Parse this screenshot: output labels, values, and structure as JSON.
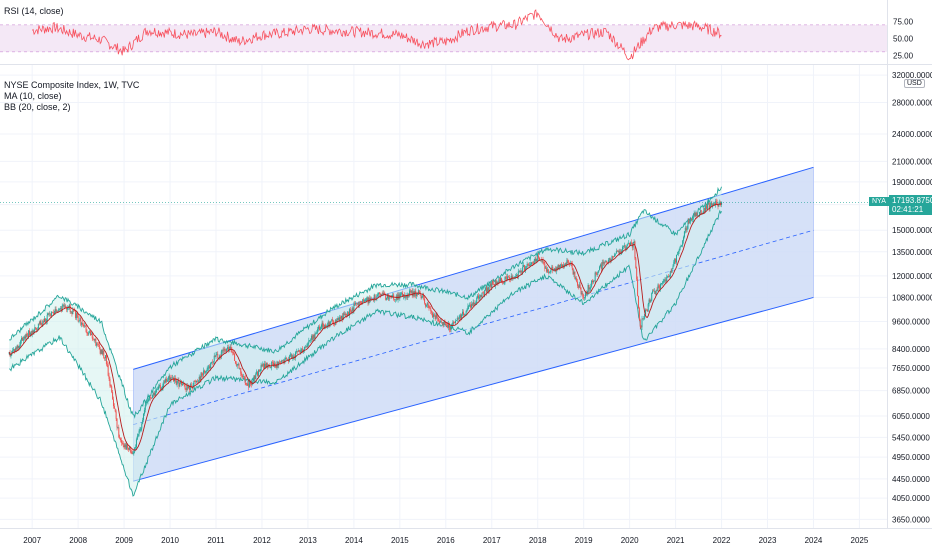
{
  "rsi_pane": {
    "title": "RSI (14, close)",
    "ticks": [
      "75.00",
      "50.00",
      "25.00"
    ]
  },
  "main_pane": {
    "title": "NYSE Composite Index, 1W, TVC",
    "indicator_ma": "MA (10, close)",
    "indicator_bb": "BB (20, close, 2)",
    "currency": "USD",
    "symbol_tag": "NYA",
    "last_price": "17193.8750",
    "countdown": "02:41:21",
    "y_ticks": [
      "32000.0000",
      "28000.0000",
      "24000.0000",
      "21000.0000",
      "19000.0000",
      "17000.0000",
      "15000.0000",
      "13500.0000",
      "12000.0000",
      "10800.0000",
      "9600.0000",
      "8400.0000",
      "7650.0000",
      "6850.0000",
      "6050.0000",
      "5450.0000",
      "4950.0000",
      "4450.0000",
      "4050.0000",
      "3650.0000"
    ],
    "x_ticks": [
      "2007",
      "2008",
      "2009",
      "2010",
      "2011",
      "2012",
      "2013",
      "2014",
      "2015",
      "2016",
      "2017",
      "2018",
      "2019",
      "2020",
      "2021",
      "2022",
      "2023",
      "2024",
      "2025"
    ]
  },
  "colors": {
    "rsi_line": "#f7525f",
    "rsi_band": "#e1bee7",
    "channel_fill": "#cfdcf7",
    "channel_line": "#2962ff",
    "bb_line": "#26a69a",
    "bb_fill": "#d1f0ec",
    "ma_line": "#b71c1c",
    "candle_up": "#26a69a",
    "candle_down": "#ef5350",
    "grid": "#f0f3fa"
  },
  "chart_data": [
    {
      "type": "line",
      "title": "RSI (14, close)",
      "ylim": [
        15,
        95
      ],
      "bands": [
        30,
        70
      ],
      "x": [
        "2007",
        "2007.5",
        "2008",
        "2008.5",
        "2009",
        "2009.5",
        "2010",
        "2010.5",
        "2011",
        "2011.5",
        "2012",
        "2012.5",
        "2013",
        "2013.5",
        "2014",
        "2014.5",
        "2015",
        "2015.5",
        "2016",
        "2016.5",
        "2017",
        "2017.5",
        "2018",
        "2018.5",
        "2019",
        "2019.5",
        "2020",
        "2020.5",
        "2021",
        "2021.5",
        "2022"
      ],
      "values": [
        62,
        66,
        55,
        48,
        30,
        62,
        58,
        55,
        60,
        45,
        55,
        58,
        64,
        62,
        60,
        58,
        55,
        42,
        45,
        62,
        68,
        70,
        88,
        48,
        55,
        60,
        22,
        65,
        70,
        68,
        57
      ]
    },
    {
      "type": "line",
      "title": "NYSE Composite Index, 1W, TVC",
      "series": [
        {
          "name": "NYSE Composite Index",
          "x": [
            2006.5,
            2007.0,
            2007.5,
            2007.8,
            2008.2,
            2008.6,
            2008.9,
            2009.2,
            2009.5,
            2010.0,
            2010.4,
            2010.7,
            2011.0,
            2011.3,
            2011.7,
            2012.0,
            2012.4,
            2012.9,
            2013.3,
            2013.7,
            2014.0,
            2014.5,
            2014.9,
            2015.4,
            2015.7,
            2016.1,
            2016.5,
            2017.0,
            2017.5,
            2018.0,
            2018.2,
            2018.7,
            2018.98,
            2019.4,
            2019.9,
            2020.1,
            2020.22,
            2020.5,
            2020.9,
            2021.3,
            2021.7,
            2022.0
          ],
          "values": [
            8200,
            9200,
            10100,
            10300,
            9200,
            8000,
            5400,
            5000,
            6500,
            7300,
            6900,
            7400,
            8100,
            8400,
            7000,
            7700,
            7800,
            8400,
            9400,
            9700,
            10300,
            10900,
            10800,
            11100,
            10000,
            9300,
            10300,
            11500,
            12000,
            13200,
            12300,
            12800,
            10800,
            12700,
            13800,
            14000,
            9300,
            11000,
            12200,
            15800,
            16900,
            17194
          ]
        },
        {
          "name": "BB (20, close, 2)",
          "upper_x": [
            2006.5,
            2007.6,
            2008.5,
            2009.2,
            2010.0,
            2011.0,
            2012.3,
            2013.5,
            2014.5,
            2015.3,
            2016.5,
            2017.5,
            2018.2,
            2019.0,
            2020.0,
            2020.3,
            2021.0,
            2022.0
          ],
          "upper": [
            8800,
            10900,
            9600,
            6000,
            7700,
            8800,
            8300,
            10200,
            11500,
            11500,
            10800,
            12600,
            13700,
            13400,
            14700,
            16500,
            14700,
            18500
          ],
          "lower_x": [
            2006.5,
            2007.6,
            2008.5,
            2009.2,
            2010.0,
            2011.0,
            2012.3,
            2013.5,
            2014.5,
            2015.3,
            2016.5,
            2017.5,
            2018.2,
            2019.0,
            2020.0,
            2020.3,
            2021.0,
            2022.0
          ],
          "lower": [
            7600,
            8900,
            6500,
            4100,
            6400,
            7300,
            7100,
            8800,
            10100,
            9800,
            9100,
            11100,
            12000,
            10500,
            12600,
            8700,
            10500,
            16600
          ]
        }
      ],
      "channel": {
        "start_x": 2009.2,
        "end_x": 2024.0,
        "upper": [
          7600,
          20400
        ],
        "middle": [
          5800,
          15000
        ],
        "lower": [
          4400,
          10800
        ]
      },
      "ylim": [
        3500,
        32500
      ],
      "y_scale": "log",
      "x_range": [
        2006.3,
        2025.6
      ]
    }
  ]
}
